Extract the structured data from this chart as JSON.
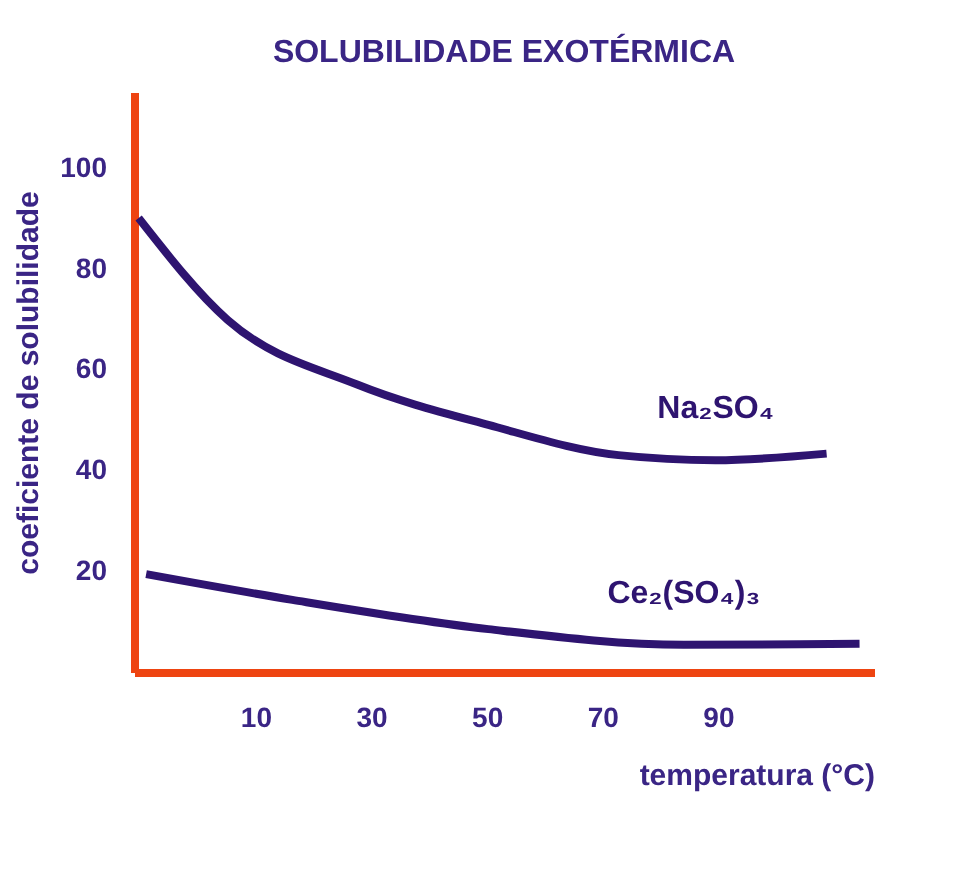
{
  "chart_data": {
    "type": "line",
    "title": "SOLUBILIDADE EXOTÉRMICA",
    "xlabel": "temperatura (°C)",
    "ylabel": "coeficiente de solubilidade",
    "xlim": [
      -11,
      117
    ],
    "ylim": [
      0,
      115
    ],
    "xticks": [
      10,
      30,
      50,
      70,
      90
    ],
    "yticks": [
      20,
      40,
      60,
      80,
      100
    ],
    "grid": false,
    "legend": false,
    "marker": "none",
    "line_style": "solid",
    "series": [
      {
        "name": "Na₂SO₄",
        "color": "#2e1470",
        "x": [
          -10.2,
          5.2,
          27.6,
          50.3,
          72.8,
          89.6,
          108.8
        ],
        "values": [
          90,
          69.8,
          57,
          49,
          43,
          42,
          43.3
        ]
      },
      {
        "name": "Ce₂(SO₄)₃",
        "color": "#2e1470",
        "x": [
          -8.9,
          16.4,
          50.3,
          84.1,
          114.5
        ],
        "values": [
          19.4,
          14.3,
          8.5,
          5.4,
          5.6
        ]
      }
    ]
  }
}
